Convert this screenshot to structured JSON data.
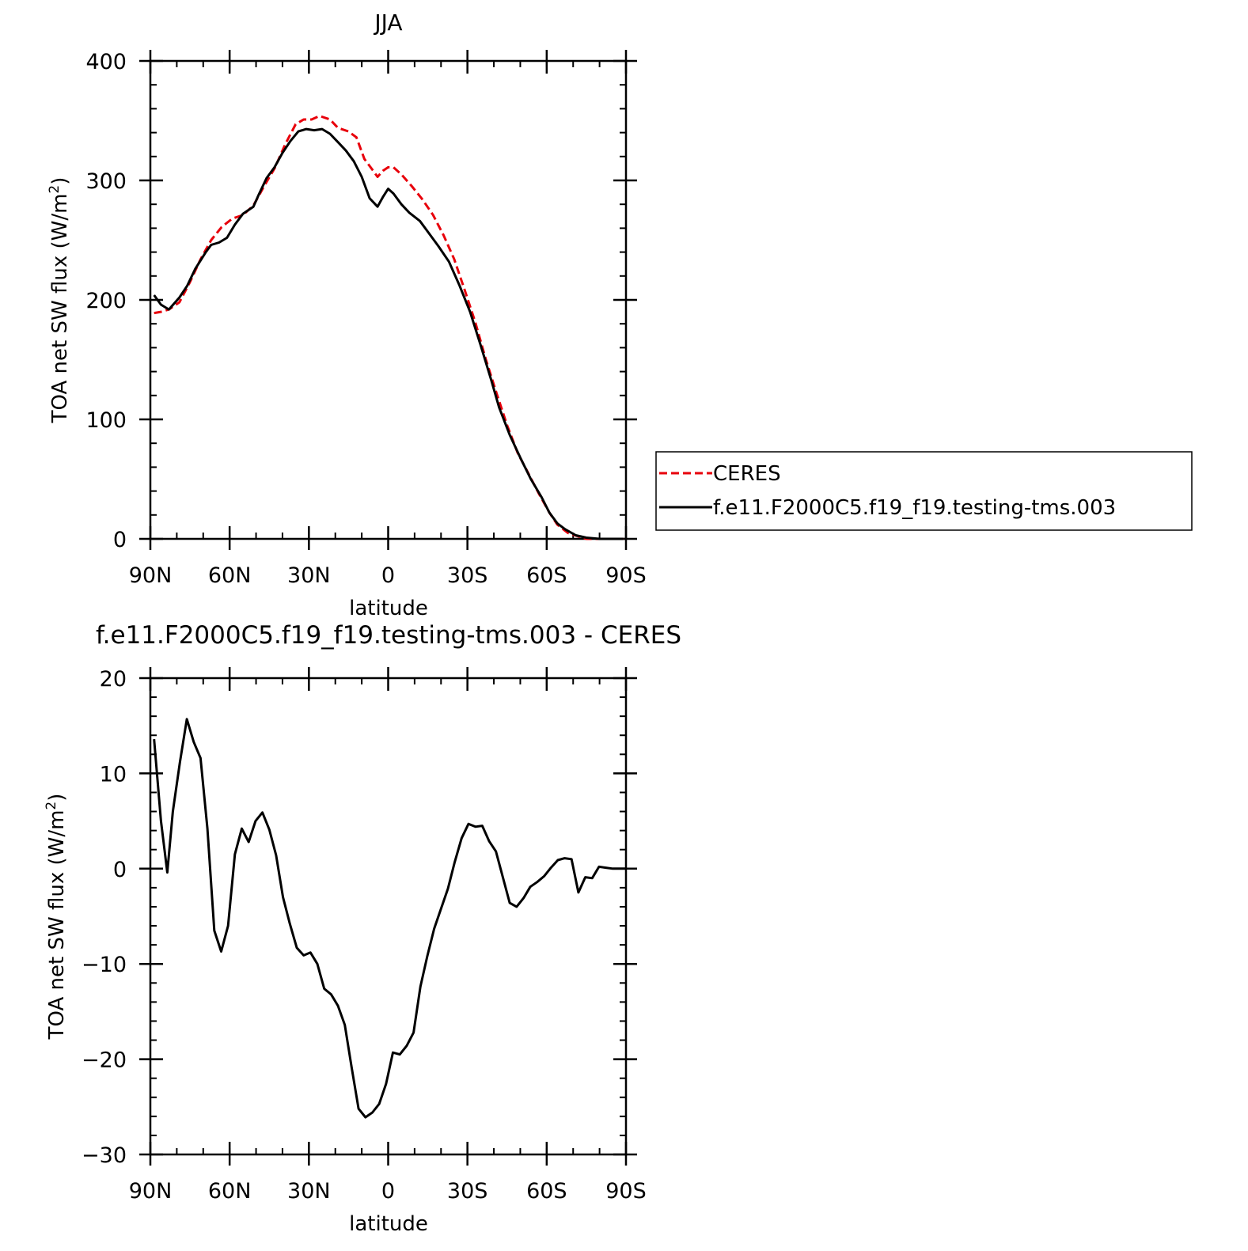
{
  "chart_data": [
    {
      "type": "line",
      "title": "JJA",
      "xlabel": "latitude",
      "ylabel": "TOA net SW flux (W/m",
      "ylabel_sup": "2",
      "ylabel_close": ")",
      "xlim": [
        90,
        -90
      ],
      "ylim": [
        0,
        400
      ],
      "x_ticks": [
        {
          "value": 90,
          "label": "90N"
        },
        {
          "value": 60,
          "label": "60N"
        },
        {
          "value": 30,
          "label": "30N"
        },
        {
          "value": 0,
          "label": "0"
        },
        {
          "value": -30,
          "label": "30S"
        },
        {
          "value": -60,
          "label": "60S"
        },
        {
          "value": -90,
          "label": "90S"
        }
      ],
      "y_ticks": [
        {
          "value": 0,
          "label": "0"
        },
        {
          "value": 100,
          "label": "100"
        },
        {
          "value": 200,
          "label": "200"
        },
        {
          "value": 300,
          "label": "300"
        },
        {
          "value": 400,
          "label": "400"
        }
      ],
      "legend": {
        "placement": "right",
        "entries": [
          "CERES",
          "f.e11.F2000C5.f19_f19.testing-tms.003"
        ]
      },
      "series": [
        {
          "name": "CERES",
          "color": "#e8000b",
          "dash": true,
          "points": [
            [
              88.6,
              189
            ],
            [
              86,
              190
            ],
            [
              83,
              192
            ],
            [
              79,
              198
            ],
            [
              75,
              215
            ],
            [
              71,
              234
            ],
            [
              67,
              250
            ],
            [
              63,
              261
            ],
            [
              59,
              268
            ],
            [
              55,
              271
            ],
            [
              51,
              279
            ],
            [
              47,
              295
            ],
            [
              43,
              310
            ],
            [
              39,
              330
            ],
            [
              35,
              347
            ],
            [
              32,
              351
            ],
            [
              29,
              351
            ],
            [
              26,
              354
            ],
            [
              22,
              351
            ],
            [
              19,
              344
            ],
            [
              15,
              341
            ],
            [
              12,
              336
            ],
            [
              9,
              318
            ],
            [
              6,
              309
            ],
            [
              4,
              303
            ],
            [
              2,
              308
            ],
            [
              0,
              311
            ],
            [
              -2,
              311
            ],
            [
              -5,
              305
            ],
            [
              -9,
              295
            ],
            [
              -13,
              284
            ],
            [
              -17,
              271
            ],
            [
              -21,
              254
            ],
            [
              -25,
              234
            ],
            [
              -29,
              208
            ],
            [
              -33,
              181
            ],
            [
              -37,
              150
            ],
            [
              -41,
              122
            ],
            [
              -45,
              95
            ],
            [
              -49,
              72
            ],
            [
              -53,
              55
            ],
            [
              -57,
              38
            ],
            [
              -61,
              22
            ],
            [
              -64,
              12
            ],
            [
              -68,
              5
            ],
            [
              -72,
              2
            ],
            [
              -75,
              0
            ],
            [
              -80,
              0
            ],
            [
              -85,
              0
            ],
            [
              -89,
              0
            ]
          ]
        },
        {
          "name": "f.e11.F2000C5.f19_f19.testing-tms.003",
          "color": "#000000",
          "dash": false,
          "points": [
            [
              88.6,
              204
            ],
            [
              86,
              196
            ],
            [
              83,
              192
            ],
            [
              79,
              202
            ],
            [
              76,
              212
            ],
            [
              73,
              226
            ],
            [
              69,
              240
            ],
            [
              67,
              246
            ],
            [
              64,
              248
            ],
            [
              61,
              252
            ],
            [
              58,
              263
            ],
            [
              55,
              272
            ],
            [
              51,
              278
            ],
            [
              49,
              288
            ],
            [
              46,
              302
            ],
            [
              43,
              311
            ],
            [
              40,
              323
            ],
            [
              37,
              333
            ],
            [
              34,
              341
            ],
            [
              31,
              343
            ],
            [
              28,
              342
            ],
            [
              25,
              343
            ],
            [
              22,
              339
            ],
            [
              19,
              332
            ],
            [
              16,
              325
            ],
            [
              13,
              316
            ],
            [
              10,
              303
            ],
            [
              7,
              285
            ],
            [
              4,
              278
            ],
            [
              2,
              286
            ],
            [
              0,
              293
            ],
            [
              -2,
              289
            ],
            [
              -5,
              280
            ],
            [
              -8,
              273
            ],
            [
              -12,
              266
            ],
            [
              -15,
              257
            ],
            [
              -19,
              245
            ],
            [
              -23,
              232
            ],
            [
              -27,
              212
            ],
            [
              -31,
              190
            ],
            [
              -35,
              162
            ],
            [
              -39,
              133
            ],
            [
              -42,
              110
            ],
            [
              -46,
              87
            ],
            [
              -50,
              68
            ],
            [
              -54,
              50
            ],
            [
              -58,
              35
            ],
            [
              -61,
              22
            ],
            [
              -64,
              13
            ],
            [
              -67,
              8
            ],
            [
              -71,
              3
            ],
            [
              -75,
              1
            ],
            [
              -80,
              0
            ],
            [
              -85,
              0
            ],
            [
              -89,
              0
            ]
          ]
        }
      ]
    },
    {
      "type": "line",
      "title": "f.e11.F2000C5.f19_f19.testing-tms.003 - CERES",
      "xlabel": "latitude",
      "ylabel": "TOA net SW flux (W/m",
      "ylabel_sup": "2",
      "ylabel_close": ")",
      "xlim": [
        90,
        -90
      ],
      "ylim": [
        -30,
        20
      ],
      "x_ticks": [
        {
          "value": 90,
          "label": "90N"
        },
        {
          "value": 60,
          "label": "60N"
        },
        {
          "value": 30,
          "label": "30N"
        },
        {
          "value": 0,
          "label": "0"
        },
        {
          "value": -30,
          "label": "30S"
        },
        {
          "value": -60,
          "label": "60S"
        },
        {
          "value": -90,
          "label": "90S"
        }
      ],
      "y_ticks": [
        {
          "value": -30,
          "label": "−30"
        },
        {
          "value": -20,
          "label": "−20"
        },
        {
          "value": -10,
          "label": "−10"
        },
        {
          "value": 0,
          "label": "0"
        },
        {
          "value": 10,
          "label": "10"
        },
        {
          "value": 20,
          "label": "20"
        }
      ],
      "series": [
        {
          "color": "#000000",
          "dash": false,
          "points": [
            [
              88.6,
              13.6
            ],
            [
              86,
              5
            ],
            [
              83.6,
              -0.4
            ],
            [
              81.5,
              6
            ],
            [
              78.8,
              11.2
            ],
            [
              76.2,
              15.7
            ],
            [
              73.6,
              13.3
            ],
            [
              71,
              11.6
            ],
            [
              68.4,
              4.2
            ],
            [
              65.8,
              -6.5
            ],
            [
              63.2,
              -8.7
            ],
            [
              60.6,
              -6
            ],
            [
              58,
              1.5
            ],
            [
              55.4,
              4.2
            ],
            [
              52.8,
              2.8
            ],
            [
              50.2,
              5
            ],
            [
              47.6,
              5.9
            ],
            [
              45,
              4.1
            ],
            [
              42.4,
              1.4
            ],
            [
              39.8,
              -3
            ],
            [
              37.2,
              -5.8
            ],
            [
              34.6,
              -8.3
            ],
            [
              32,
              -9.1
            ],
            [
              29.4,
              -8.8
            ],
            [
              26.8,
              -10
            ],
            [
              24.2,
              -12.6
            ],
            [
              21.6,
              -13.2
            ],
            [
              19,
              -14.4
            ],
            [
              16.4,
              -16.4
            ],
            [
              13.8,
              -20.9
            ],
            [
              11.2,
              -25.2
            ],
            [
              8.6,
              -26.1
            ],
            [
              6,
              -25.6
            ],
            [
              3.4,
              -24.7
            ],
            [
              0.8,
              -22.6
            ],
            [
              -1.8,
              -19.3
            ],
            [
              -4.4,
              -19.5
            ],
            [
              -7,
              -18.6
            ],
            [
              -9.6,
              -17.2
            ],
            [
              -12.2,
              -12.4
            ],
            [
              -14.8,
              -9.2
            ],
            [
              -17.4,
              -6.3
            ],
            [
              -20,
              -4.2
            ],
            [
              -22.6,
              -2.1
            ],
            [
              -25.2,
              0.7
            ],
            [
              -27.8,
              3.2
            ],
            [
              -30.4,
              4.7
            ],
            [
              -33,
              4.4
            ],
            [
              -35.6,
              4.5
            ],
            [
              -38.2,
              2.9
            ],
            [
              -40.8,
              1.8
            ],
            [
              -43.4,
              -0.9
            ],
            [
              -46,
              -3.6
            ],
            [
              -48.6,
              -4
            ],
            [
              -51.2,
              -3.1
            ],
            [
              -53.8,
              -1.9
            ],
            [
              -56.4,
              -1.4
            ],
            [
              -59,
              -0.8
            ],
            [
              -61.6,
              0.1
            ],
            [
              -64.2,
              0.9
            ],
            [
              -66.8,
              1.1
            ],
            [
              -69.4,
              1
            ],
            [
              -72,
              -2.5
            ],
            [
              -74.6,
              -0.9
            ],
            [
              -77.2,
              -1
            ],
            [
              -79.8,
              0.2
            ],
            [
              -82.4,
              0.1
            ],
            [
              -85,
              0
            ],
            [
              -87.6,
              0
            ],
            [
              -89.9,
              0
            ]
          ]
        }
      ]
    }
  ]
}
